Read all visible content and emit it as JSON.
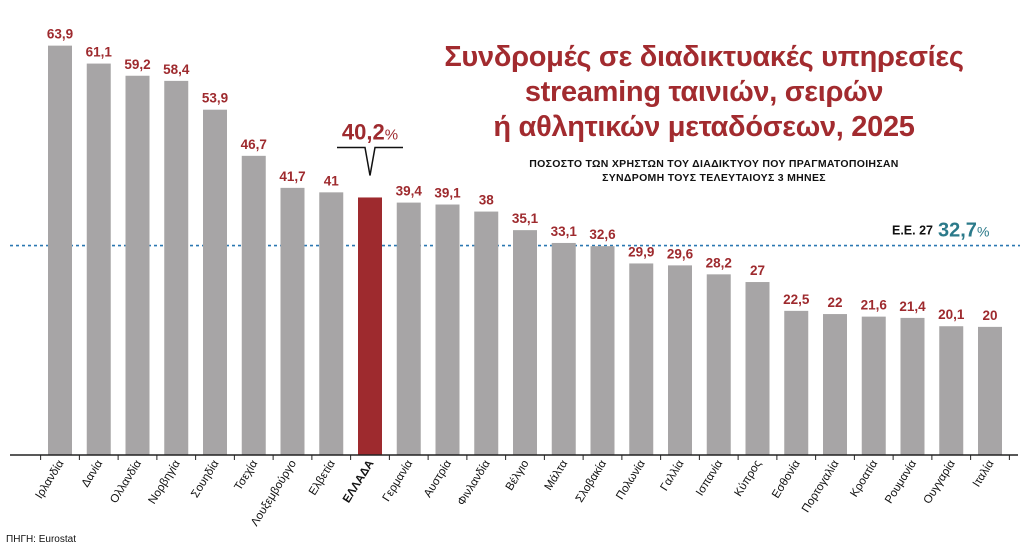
{
  "header": {
    "title_lines": [
      "Συνδρομές σε διαδικτυακές υπηρεσίες",
      "streaming ταινιών, σειρών",
      "ή αθλητικών μεταδόσεων, 2025"
    ],
    "subtitle_lines": [
      "ΠΟΣΟΣΤΟ ΤΩΝ ΧΡΗΣΤΩΝ ΤΟΥ ΔΙΑΔΙΚΤΥΟΥ ΠΟΥ ΠΡΑΓΜΑΤΟΠΟΙΗΣΑΝ",
      "ΣΥΝΔΡΟΜΗ ΤΟΥΣ ΤΕΛΕΥΤΑΙΟΥΣ 3 ΜΗΝΕΣ"
    ]
  },
  "source": "ΠΗΓΗ: Eurostat",
  "colors": {
    "bar": "#a7a5a6",
    "highlight": "#9e2a2e",
    "value_label": "#9e2a2e",
    "reference_line": "#2b78b2",
    "reference_value": "#2b7a8a",
    "axis": "#222222"
  },
  "chart_data": {
    "type": "bar",
    "categories": [
      "Ιρλανδία",
      "Δανία",
      "Ολλανδία",
      "Νορβηγία",
      "Σουηδία",
      "Τσεχία",
      "Λουξεμβούργο",
      "Ελβετία",
      "ΕΛΛΑΔΑ",
      "Γερμανία",
      "Αυστρία",
      "Φινλανδία",
      "Βέλγιο",
      "Μάλτα",
      "Σλοβακία",
      "Πολωνία",
      "Γαλλία",
      "Ισπανία",
      "Κύπρος",
      "Εσθονία",
      "Πορτογαλία",
      "Κροατία",
      "Ρουμανία",
      "Ουγγαρία",
      "Ιταλία"
    ],
    "values": [
      63.9,
      61.1,
      59.2,
      58.4,
      53.9,
      46.7,
      41.7,
      41,
      40.2,
      39.4,
      39.1,
      38,
      35.1,
      33.1,
      32.6,
      29.9,
      29.6,
      28.2,
      27,
      22.5,
      22,
      21.6,
      21.4,
      20.1,
      20
    ],
    "value_labels": [
      "63,9",
      "61,1",
      "59,2",
      "58,4",
      "53,9",
      "46,7",
      "41,7",
      "41",
      "40,2",
      "39,4",
      "39,1",
      "38",
      "35,1",
      "33,1",
      "32,6",
      "29,9",
      "29,6",
      "28,2",
      "27",
      "22,5",
      "22",
      "21,6",
      "21,4",
      "20,1",
      "20"
    ],
    "highlight_index": 8,
    "highlight_callout": {
      "value": "40,2",
      "unit": "%"
    },
    "reference": {
      "label": "Ε.Ε. 27",
      "value": 32.7,
      "value_label": "32,7",
      "unit": "%"
    },
    "ylim": [
      0,
      64
    ],
    "grid": false,
    "title": "Συνδρομές σε διαδικτυακές υπηρεσίες streaming ταινιών, σειρών ή αθλητικών μεταδόσεων, 2025",
    "xlabel": "",
    "ylabel": ""
  }
}
